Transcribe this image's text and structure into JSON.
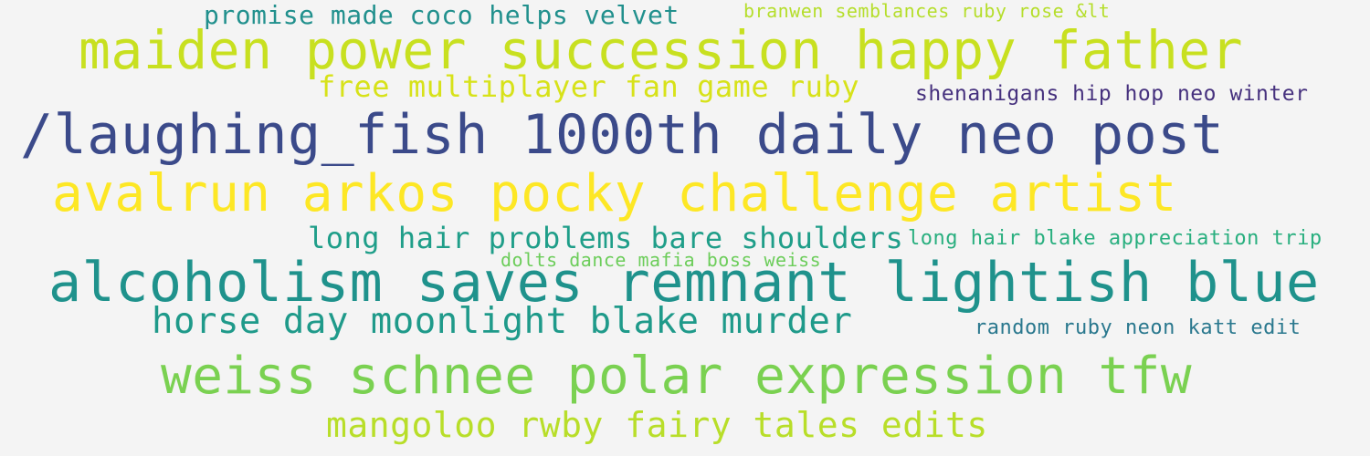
{
  "word_cloud": {
    "phrases": [
      {
        "text": "promise made coco helps velvet",
        "color": "#21908d"
      },
      {
        "text": "branwen semblances ruby rose &lt",
        "color": "#b5de2b"
      },
      {
        "text": "maiden power succession happy father",
        "color": "#c8e020"
      },
      {
        "text": "free multiplayer fan game ruby",
        "color": "#d7e219"
      },
      {
        "text": "shenanigans hip hop neo winter",
        "color": "#46317e"
      },
      {
        "text": "/laughing_fish 1000th daily neo post",
        "color": "#3b4a8a"
      },
      {
        "text": "avalrun arkos pocky challenge artist",
        "color": "#fde725"
      },
      {
        "text": "long hair problems bare shoulders",
        "color": "#1f9e89"
      },
      {
        "text": "long hair blake appreciation trip",
        "color": "#29af7f"
      },
      {
        "text": "dolts dance mafia boss weiss",
        "color": "#6ccd5a"
      },
      {
        "text": "alcoholism saves remnant lightish blue",
        "color": "#1f928c"
      },
      {
        "text": "horse day moonlight blake murder",
        "color": "#1f9a8a"
      },
      {
        "text": "random ruby neon katt edit",
        "color": "#2a788e"
      },
      {
        "text": "weiss schnee polar expression tfw",
        "color": "#7ad151"
      },
      {
        "text": "mangoloo rwby fairy tales edits",
        "color": "#b8de29"
      }
    ]
  }
}
